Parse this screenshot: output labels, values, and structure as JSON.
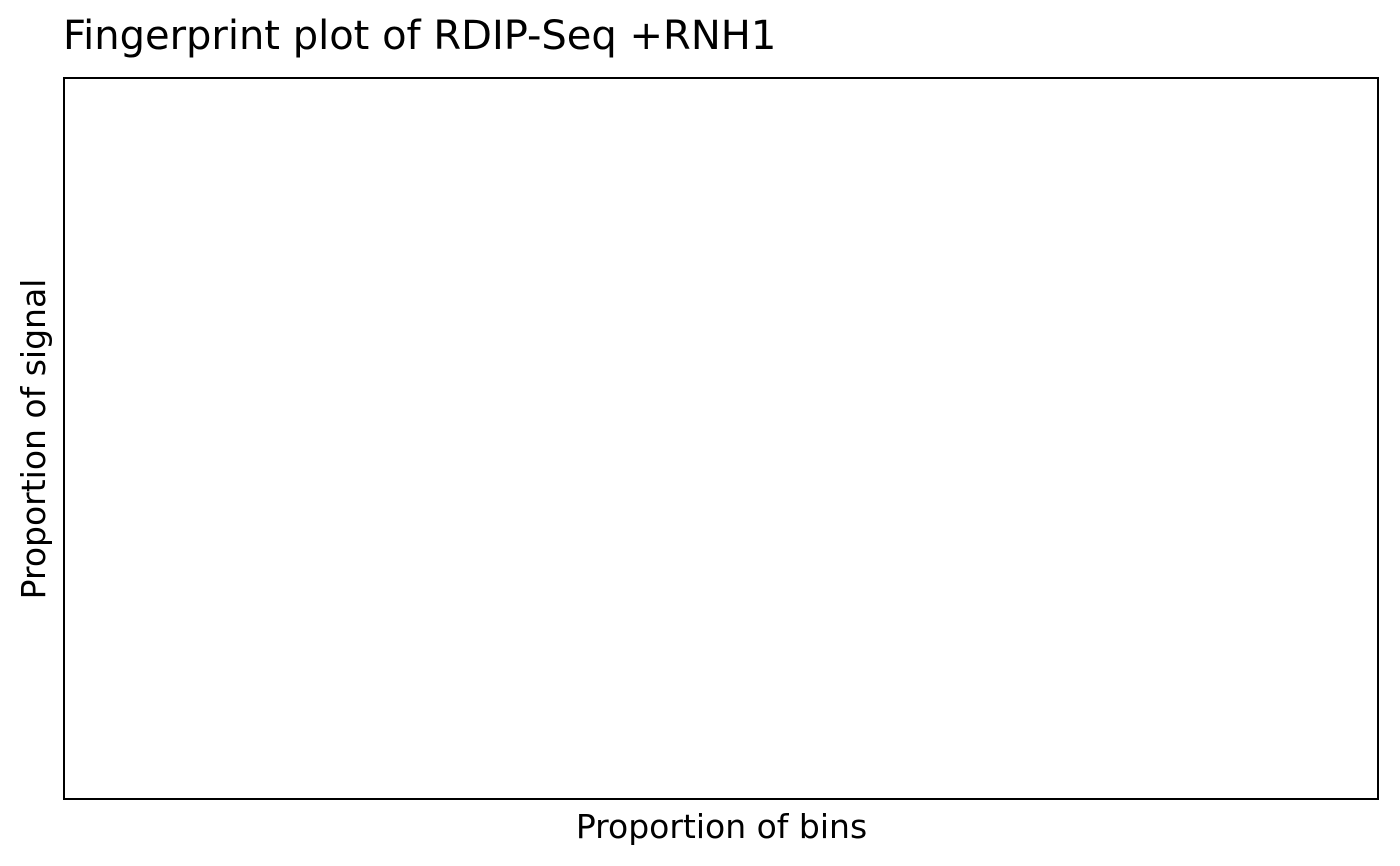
{
  "chart_data": {
    "type": "line",
    "title": "Fingerprint plot of RDIP-Seq +RNH1",
    "xlabel": "Proportion of bins",
    "ylabel": "Proportion of signal",
    "series": [],
    "grid": false,
    "legend": "none",
    "x_ticks_shown": false,
    "y_ticks_shown": false
  }
}
